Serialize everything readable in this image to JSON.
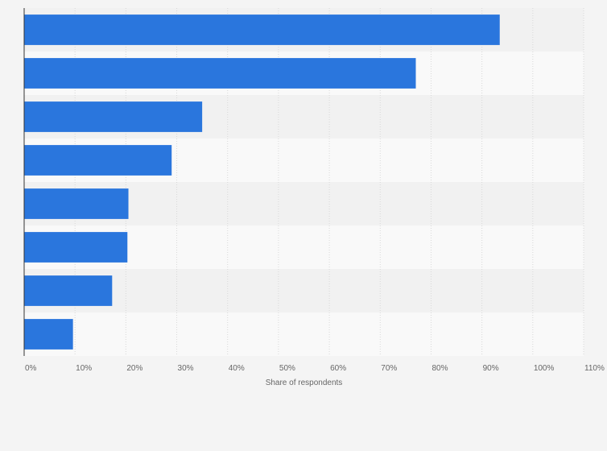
{
  "chart_data": {
    "type": "bar",
    "orientation": "horizontal",
    "categories": [
      "",
      "",
      "",
      "",
      "",
      "",
      "",
      ""
    ],
    "values": [
      93.5,
      77,
      35,
      29,
      20.5,
      20.3,
      17.3,
      9.6
    ],
    "xlabel": "Share of respondents",
    "ylabel": "",
    "xlim": [
      0,
      110
    ],
    "tick_values": [
      0,
      10,
      20,
      30,
      40,
      50,
      60,
      70,
      80,
      90,
      100,
      110
    ],
    "tick_labels": [
      "0%",
      "10%",
      "20%",
      "30%",
      "40%",
      "50%",
      "60%",
      "70%",
      "80%",
      "90%",
      "100%",
      "110%"
    ],
    "grid": "vertical dashed",
    "legend": "none",
    "colors": {
      "bar": "#2a76dd",
      "band_dark": "#f1f1f1",
      "band_light": "#f9f9f9",
      "grid": "#d8d8d8",
      "axis": "#333333"
    }
  }
}
